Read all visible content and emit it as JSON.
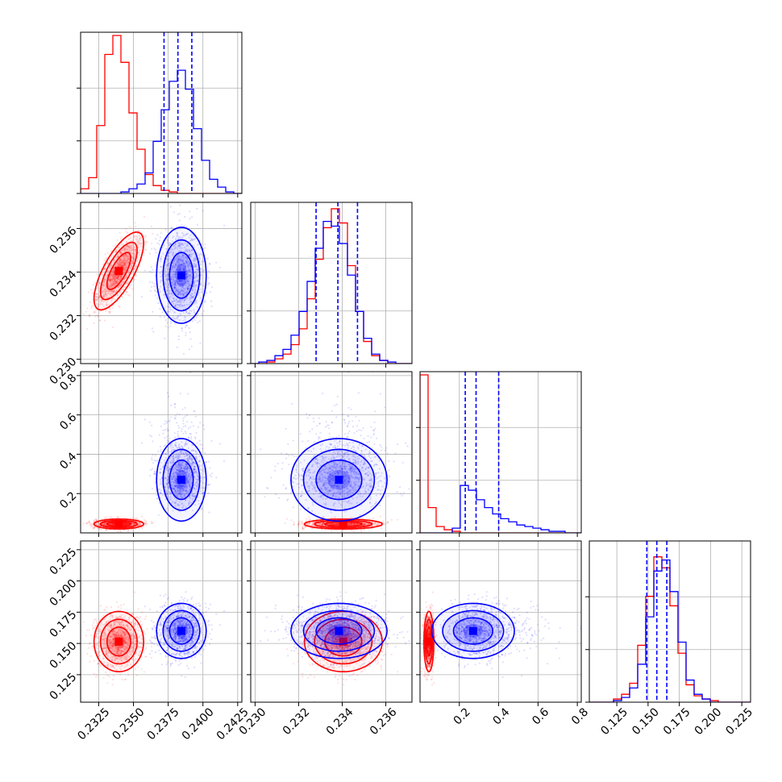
{
  "chart_data": {
    "type": "corner",
    "series": [
      {
        "name": "",
        "color": "#ff0000"
      },
      {
        "name": "",
        "color": "#0000ff"
      }
    ],
    "grid": true,
    "axes": {
      "p1": {
        "range": [
          0.2312,
          0.2428
        ],
        "ticks": [
          "0.2325",
          "0.2350",
          "0.2375",
          "0.2400",
          "0.2425"
        ],
        "tick_values": [
          0.2325,
          0.235,
          0.2375,
          0.24,
          0.2425
        ]
      },
      "p2": {
        "range": [
          0.2298,
          0.2372
        ],
        "ticks": [
          "0.230",
          "0.232",
          "0.234",
          "0.236"
        ],
        "tick_values": [
          0.23,
          0.232,
          0.234,
          0.236
        ]
      },
      "p3": {
        "range": [
          0.0,
          0.82
        ],
        "ticks": [
          "0.2",
          "0.4",
          "0.6",
          "0.8"
        ],
        "tick_values": [
          0.2,
          0.4,
          0.6,
          0.8
        ]
      },
      "p4": {
        "range": [
          0.103,
          0.232
        ],
        "ticks": [
          "0.125",
          "0.150",
          "0.175",
          "0.200",
          "0.225"
        ],
        "tick_values": [
          0.125,
          0.15,
          0.175,
          0.2,
          0.225
        ]
      }
    },
    "histograms": {
      "p1": {
        "bin_start": 0.2312,
        "bin_width": 0.00058,
        "red": [
          0.03,
          0.1,
          0.43,
          0.88,
          1.0,
          0.83,
          0.51,
          0.28,
          0.12,
          0.05,
          0.02,
          0.01,
          0.0,
          0.0,
          0.0,
          0.0,
          0.0,
          0.0,
          0.0,
          0.0
        ],
        "blue": [
          0.0,
          0.0,
          0.0,
          0.0,
          0.0,
          0.01,
          0.03,
          0.06,
          0.13,
          0.33,
          0.53,
          0.71,
          0.78,
          0.66,
          0.41,
          0.21,
          0.09,
          0.04,
          0.01,
          0.0
        ],
        "quantiles": [
          0.2372,
          0.2382,
          0.2392
        ]
      },
      "p2": {
        "bin_start": 0.2298,
        "bin_width": 0.00037,
        "red": [
          0.0,
          0.0,
          0.01,
          0.03,
          0.06,
          0.12,
          0.22,
          0.41,
          0.66,
          0.86,
          0.98,
          0.89,
          0.62,
          0.33,
          0.14,
          0.05,
          0.02,
          0.0,
          0.0,
          0.0
        ],
        "blue": [
          0.0,
          0.01,
          0.02,
          0.05,
          0.09,
          0.18,
          0.33,
          0.52,
          0.73,
          0.9,
          0.87,
          0.76,
          0.56,
          0.33,
          0.16,
          0.06,
          0.02,
          0.01,
          0.0,
          0.0
        ],
        "quantiles": [
          0.2328,
          0.2338,
          0.2347
        ]
      },
      "p3": {
        "bin_start": 0.0,
        "bin_width": 0.041,
        "red": [
          1.0,
          0.16,
          0.04,
          0.02,
          0.01,
          0.0,
          0.0,
          0.0,
          0.0,
          0.0,
          0.0,
          0.0,
          0.0,
          0.0,
          0.0,
          0.0,
          0.0,
          0.0,
          0.0,
          0.0
        ],
        "blue": [
          0.0,
          0.0,
          0.0,
          0.0,
          0.03,
          0.3,
          0.27,
          0.21,
          0.16,
          0.12,
          0.09,
          0.07,
          0.05,
          0.04,
          0.03,
          0.02,
          0.01,
          0.01,
          0.0,
          0.0
        ],
        "quantiles": [
          0.23,
          0.285,
          0.4
        ]
      },
      "p4": {
        "bin_start": 0.103,
        "bin_width": 0.00645,
        "red": [
          0.0,
          0.0,
          0.0,
          0.02,
          0.05,
          0.12,
          0.36,
          0.67,
          0.92,
          0.85,
          0.61,
          0.31,
          0.11,
          0.04,
          0.02,
          0.01,
          0.0,
          0.0,
          0.0,
          0.0
        ],
        "blue": [
          0.0,
          0.0,
          0.0,
          0.01,
          0.03,
          0.09,
          0.24,
          0.54,
          0.83,
          0.9,
          0.7,
          0.38,
          0.14,
          0.05,
          0.02,
          0.0,
          0.0,
          0.0,
          0.0,
          0.0
        ],
        "quantiles": [
          0.149,
          0.157,
          0.165
        ]
      }
    },
    "distributions": {
      "red": {
        "p1": {
          "mean": 0.23395,
          "sd": 0.00085
        },
        "p2": {
          "mean": 0.23405,
          "sd": 0.00085
        },
        "p3": {
          "mean": 0.045,
          "sd": 0.012
        },
        "p4": {
          "mean": 0.1515,
          "sd": 0.0115
        },
        "corr_p1_p2": 0.72
      },
      "blue": {
        "p1": {
          "mean": 0.23845,
          "sd": 0.00085
        },
        "p2": {
          "mean": 0.23385,
          "sd": 0.00105
        },
        "p3": {
          "mean": 0.3,
          "sd": 0.11
        },
        "p4": {
          "mean": 0.16,
          "sd": 0.0105
        }
      }
    }
  }
}
